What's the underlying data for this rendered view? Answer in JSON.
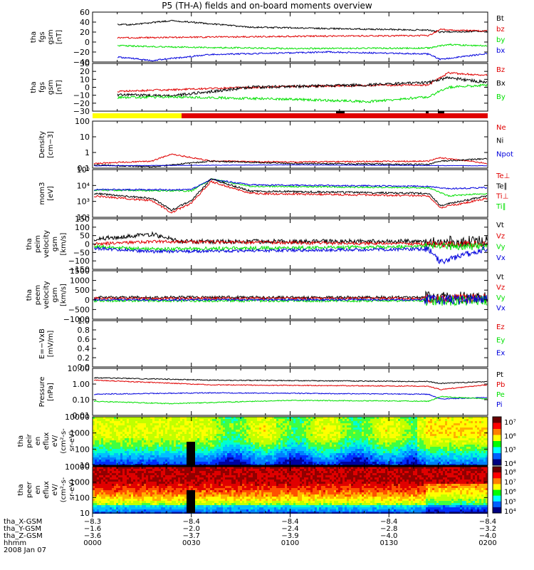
{
  "title": "P5 (TH-A) fields and on-board moments overview",
  "colors": {
    "black": "#000000",
    "red": "#e00000",
    "green": "#00e000",
    "blue": "#0000dd",
    "yellow": "#ffff00"
  },
  "panels": [
    {
      "ylabel": [
        "tha",
        "fgs",
        "gsm",
        "[nT]"
      ],
      "ticks": [
        "60",
        "40",
        "20",
        "0",
        "−20",
        "−40"
      ],
      "legend": [
        {
          "t": "Bt",
          "c": "black"
        },
        {
          "t": "bz",
          "c": "red"
        },
        {
          "t": "by",
          "c": "green"
        },
        {
          "t": "bx",
          "c": "blue"
        }
      ]
    },
    {
      "ylabel": [
        "tha",
        "fgs",
        "gsm",
        "[nT]"
      ],
      "ticks": [
        "30",
        "20",
        "10",
        "0",
        "−10",
        "−20",
        "−30"
      ],
      "legend": [
        {
          "t": "Bz",
          "c": "red"
        },
        {
          "t": "Bx",
          "c": "black"
        },
        {
          "t": "By",
          "c": "green"
        }
      ]
    },
    {
      "ylabel": [
        "Density",
        "[cm−3]"
      ],
      "ticks": [
        "100",
        "10",
        "1",
        "0.1"
      ],
      "legend": [
        {
          "t": "Ne",
          "c": "red"
        },
        {
          "t": "Ni",
          "c": "black"
        },
        {
          "t": "Npot",
          "c": "blue"
        }
      ]
    },
    {
      "ylabel": [
        "mom3",
        "[eV]"
      ],
      "ticks": [
        "10⁵",
        "10⁴",
        "10³",
        "10²"
      ],
      "legend": [
        {
          "t": "Te⊥",
          "c": "red"
        },
        {
          "t": "Te∥",
          "c": "black"
        },
        {
          "t": "Ti⊥",
          "c": "red"
        },
        {
          "t": "Ti∥",
          "c": "green"
        }
      ]
    },
    {
      "ylabel": [
        "tha",
        "peim",
        "velocity",
        "gsm",
        "[km/s]"
      ],
      "ticks": [
        "150",
        "100",
        "50",
        "0",
        "−50",
        "−100",
        "−150"
      ],
      "legend": [
        {
          "t": "Vt",
          "c": "black"
        },
        {
          "t": "Vz",
          "c": "red"
        },
        {
          "t": "Vy",
          "c": "green"
        },
        {
          "t": "Vx",
          "c": "blue"
        }
      ]
    },
    {
      "ylabel": [
        "tha",
        "peem",
        "velocity",
        "gsm",
        "[km/s]"
      ],
      "ticks": [
        "1500",
        "1000",
        "500",
        "0",
        "−500",
        "−1000"
      ],
      "legend": [
        {
          "t": "Vt",
          "c": "black"
        },
        {
          "t": "Vz",
          "c": "red"
        },
        {
          "t": "Vy",
          "c": "green"
        },
        {
          "t": "Vx",
          "c": "blue"
        }
      ]
    },
    {
      "ylabel": [
        "E=−VxB",
        "[mV/m]"
      ],
      "ticks": [
        "1.0",
        "0.8",
        "0.6",
        "0.4",
        "0.2",
        "0.0"
      ],
      "legend": [
        {
          "t": "Ez",
          "c": "red"
        },
        {
          "t": "Ey",
          "c": "green"
        },
        {
          "t": "Ex",
          "c": "blue"
        }
      ]
    },
    {
      "ylabel": [
        "Pressure",
        "[nPa]"
      ],
      "ticks": [
        "10.00",
        "1.00",
        "0.10",
        "0.01"
      ],
      "legend": [
        {
          "t": "Pt",
          "c": "black"
        },
        {
          "t": "Pb",
          "c": "red"
        },
        {
          "t": "Pe",
          "c": "green"
        },
        {
          "t": "Pi",
          "c": "blue"
        }
      ]
    },
    {
      "ylabel": [
        "tha",
        "peir",
        "en",
        "eflux",
        "eV/",
        "(cm²-s-",
        "sr-eV)"
      ],
      "ticks": [
        "10000",
        "1000",
        "100",
        "10"
      ],
      "cbar": [
        "10⁷",
        "10⁶",
        "10⁵",
        "10⁴"
      ]
    },
    {
      "ylabel": [
        "tha",
        "peer",
        "en",
        "eflux",
        "eV/",
        "(cm²-s-",
        "sr-eV)"
      ],
      "ticks": [
        "10000",
        "1000",
        "100",
        "10"
      ],
      "cbar": [
        "10⁸",
        "10⁷",
        "10⁶",
        "10⁵",
        "10⁴"
      ]
    }
  ],
  "xaxis": {
    "row_labels": [
      "tha_X-GSM",
      "tha_Y-GSM",
      "tha_Z-GSM",
      "hhmm",
      "2008 Jan 07"
    ],
    "columns": [
      {
        "x": "−8.3",
        "y": "−1.6",
        "z": "−3.6",
        "t": "0000"
      },
      {
        "x": "−8.4",
        "y": "−2.0",
        "z": "−3.7",
        "t": "0030"
      },
      {
        "x": "−8.4",
        "y": "−2.4",
        "z": "−3.9",
        "t": "0100"
      },
      {
        "x": "−8.4",
        "y": "−2.8",
        "z": "−4.0",
        "t": "0130"
      },
      {
        "x": "−8.4",
        "y": "−3.2",
        "z": "−4.0",
        "t": "0200"
      }
    ]
  },
  "chart_data": [
    {
      "type": "line",
      "title": "P5 (TH-A) fields and on-board moments overview",
      "ylabel": "tha fgs gsm [nT]",
      "ylim": [
        -40,
        60
      ],
      "x": [
        "0000",
        "0030",
        "0100",
        "0130",
        "0200"
      ],
      "series": [
        {
          "name": "Bt",
          "values": [
            35,
            33,
            30,
            30,
            28
          ]
        },
        {
          "name": "bz",
          "values": [
            8,
            8,
            9,
            10,
            25
          ]
        },
        {
          "name": "by",
          "values": [
            -8,
            -10,
            -14,
            -12,
            -5
          ]
        },
        {
          "name": "bx",
          "values": [
            -30,
            -22,
            -22,
            -20,
            -15
          ]
        }
      ]
    },
    {
      "type": "line",
      "ylabel": "tha fgs gsm [nT]",
      "ylim": [
        -30,
        30
      ],
      "x": [
        "0000",
        "0030",
        "0100",
        "0130",
        "0200"
      ],
      "series": [
        {
          "name": "Bz",
          "values": [
            -6,
            -2,
            1,
            2,
            14
          ]
        },
        {
          "name": "Bx",
          "values": [
            -7,
            -8,
            -2,
            2,
            5
          ]
        },
        {
          "name": "By",
          "values": [
            -18,
            -12,
            -12,
            -16,
            3
          ]
        }
      ]
    },
    {
      "type": "line",
      "ylabel": "Density [cm-3]",
      "ylim": [
        0.1,
        100
      ],
      "x": [
        "0000",
        "0030",
        "0100",
        "0130",
        "0200"
      ],
      "series": [
        {
          "name": "Ne",
          "values": [
            0.4,
            0.6,
            0.5,
            0.5,
            0.7
          ]
        },
        {
          "name": "Ni",
          "values": [
            0.3,
            0.6,
            0.4,
            0.3,
            0.5
          ]
        },
        {
          "name": "Npot",
          "values": [
            0.3,
            0.4,
            0.3,
            0.3,
            0.3
          ]
        }
      ]
    },
    {
      "type": "line",
      "ylabel": "mom3 [eV]",
      "ylim": [
        100,
        100000
      ],
      "x": [
        "0000",
        "0030",
        "0100",
        "0130",
        "0200"
      ],
      "series": [
        {
          "name": "Te⊥",
          "values": [
            2200,
            8000,
            2800,
            2600,
            2200
          ]
        },
        {
          "name": "Te∥",
          "values": [
            2800,
            8000,
            3200,
            3000,
            2400
          ]
        },
        {
          "name": "Ti⊥",
          "values": [
            4000,
            4200,
            4000,
            4200,
            3600
          ]
        },
        {
          "name": "Ti∥",
          "values": [
            3800,
            4000,
            3600,
            3800,
            2800
          ]
        }
      ]
    },
    {
      "type": "line",
      "ylabel": "tha peim velocity gsm [km/s]",
      "ylim": [
        -150,
        150
      ],
      "x": [
        "0000",
        "0030",
        "0100",
        "0130",
        "0200"
      ],
      "series": [
        {
          "name": "Vt",
          "values": [
            30,
            20,
            15,
            20,
            15
          ]
        },
        {
          "name": "Vz",
          "values": [
            10,
            0,
            0,
            5,
            0
          ]
        },
        {
          "name": "Vy",
          "values": [
            0,
            -5,
            -5,
            -5,
            -5
          ]
        },
        {
          "name": "Vx",
          "values": [
            -10,
            -5,
            -5,
            -10,
            -5
          ]
        }
      ]
    },
    {
      "type": "line",
      "ylabel": "tha peem velocity gsm [km/s]",
      "ylim": [
        -1000,
        1500
      ],
      "x": [
        "0000",
        "0030",
        "0100",
        "0130",
        "0200"
      ],
      "series": [
        {
          "name": "Vt",
          "values": [
            200,
            150,
            200,
            250,
            300
          ]
        },
        {
          "name": "Vz",
          "values": [
            50,
            30,
            50,
            80,
            150
          ]
        },
        {
          "name": "Vy",
          "values": [
            -50,
            -50,
            -60,
            -80,
            -150
          ]
        },
        {
          "name": "Vx",
          "values": [
            -100,
            -80,
            -100,
            -150,
            -300
          ]
        }
      ]
    },
    {
      "type": "line",
      "ylabel": "E=-VxB [mV/m]",
      "ylim": [
        0,
        1
      ],
      "x": [
        "0000",
        "0030",
        "0100",
        "0130",
        "0200"
      ],
      "series": []
    },
    {
      "type": "line",
      "ylabel": "Pressure [nPa]",
      "ylim": [
        0.01,
        10
      ],
      "x": [
        "0000",
        "0030",
        "0100",
        "0130",
        "0200"
      ],
      "series": [
        {
          "name": "Pt",
          "values": [
            0.7,
            0.6,
            0.55,
            0.5,
            0.55
          ]
        },
        {
          "name": "Pb",
          "values": [
            0.45,
            0.3,
            0.25,
            0.25,
            0.35
          ]
        },
        {
          "name": "Pe",
          "values": [
            0.08,
            0.1,
            0.09,
            0.08,
            0.06
          ]
        },
        {
          "name": "Pi",
          "values": [
            0.16,
            0.16,
            0.15,
            0.15,
            0.1
          ]
        }
      ]
    },
    {
      "type": "heatmap",
      "ylabel": "tha peir en eflux eV/(cm2-s-sr-eV)",
      "ylim": [
        10,
        10000
      ],
      "zlim": [
        10000,
        10000000
      ]
    },
    {
      "type": "heatmap",
      "ylabel": "tha peer en eflux eV/(cm2-s-sr-eV)",
      "ylim": [
        10,
        10000
      ],
      "zlim": [
        10000,
        100000000
      ]
    }
  ]
}
